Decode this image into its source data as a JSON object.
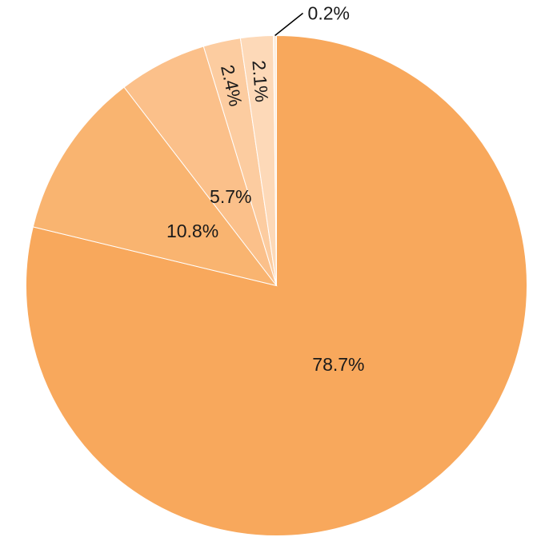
{
  "chart_data": {
    "type": "pie",
    "values": [
      78.7,
      10.8,
      5.7,
      2.4,
      2.1,
      0.2
    ],
    "labels": [
      "78.7%",
      "10.8%",
      "5.7%",
      "2.4%",
      "2.1%",
      "0.2%"
    ],
    "colors": [
      "#f8a85c",
      "#f9b470",
      "#fbc08a",
      "#fccca0",
      "#fdd9b8",
      "#feeede"
    ],
    "start_angle": "12 o'clock",
    "direction": "clockwise",
    "legend": "none"
  }
}
